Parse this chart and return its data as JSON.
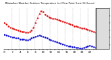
{
  "title": "Milwaukee Weather Outdoor Temperature (vs) Dew Point (Last 24 Hours)",
  "temp_color": "#dd0000",
  "dew_color": "#0000cc",
  "bg_color": "#ffffff",
  "grid_color": "#999999",
  "right_panel_color": "#dddddd",
  "n_points": 48,
  "temp_curve": [
    50,
    48,
    46,
    44,
    43,
    42,
    41,
    40,
    39,
    38,
    38,
    37,
    37,
    38,
    40,
    44,
    50,
    57,
    63,
    66,
    65,
    62,
    60,
    58,
    57,
    56,
    56,
    55,
    54,
    53,
    52,
    51,
    50,
    49,
    48,
    47,
    46,
    46,
    45,
    44,
    43,
    43,
    42,
    41,
    40,
    39,
    38,
    37
  ],
  "dew_curve": [
    34,
    33,
    32,
    31,
    30,
    30,
    29,
    29,
    28,
    28,
    28,
    27,
    27,
    28,
    29,
    30,
    31,
    32,
    33,
    32,
    31,
    30,
    29,
    28,
    27,
    26,
    25,
    24,
    23,
    22,
    21,
    20,
    19,
    18,
    18,
    17,
    17,
    16,
    16,
    15,
    15,
    16,
    17,
    18,
    19,
    18,
    17,
    16
  ],
  "ylim": [
    14,
    70
  ],
  "yticks": [
    20,
    30,
    40,
    50,
    60,
    70
  ],
  "ytick_labels": [
    "20",
    "30",
    "40",
    "50",
    "60",
    "70"
  ],
  "n_xticks": 24,
  "tick_fontsize": 3.0,
  "title_fontsize": 2.5,
  "line_width": 0.5,
  "marker_size": 1.5
}
